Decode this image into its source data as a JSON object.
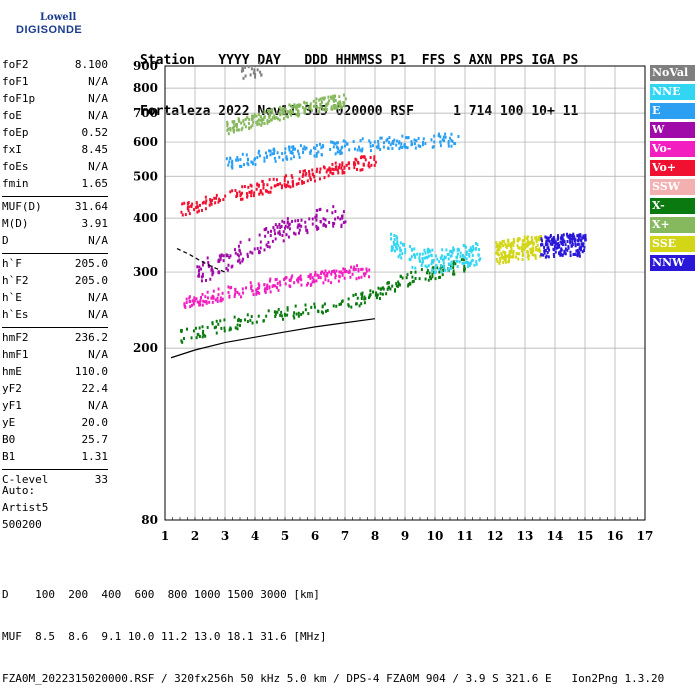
{
  "logo": {
    "line1": "Lowell",
    "line2": "DIGISONDE"
  },
  "header": {
    "row1": "Station   YYYY DAY   DDD HHMMSS P1  FFS S AXN PPS IGA PS",
    "row2": "Fortaleza 2022 Nov11 315 020000 RSF     1 714 100 10+ 11"
  },
  "params": {
    "group1": [
      {
        "k": "foF2",
        "v": "8.100"
      },
      {
        "k": "foF1",
        "v": "N/A"
      },
      {
        "k": "foF1p",
        "v": "N/A"
      },
      {
        "k": "foE",
        "v": "N/A"
      },
      {
        "k": "foEp",
        "v": "0.52"
      },
      {
        "k": "fxI",
        "v": "8.45"
      },
      {
        "k": "foEs",
        "v": "N/A"
      },
      {
        "k": "fmin",
        "v": "1.65"
      }
    ],
    "group2": [
      {
        "k": "MUF(D)",
        "v": "31.64"
      },
      {
        "k": "M(D)",
        "v": "3.91"
      },
      {
        "k": "D",
        "v": "N/A"
      }
    ],
    "group3": [
      {
        "k": "h`F",
        "v": "205.0"
      },
      {
        "k": "h`F2",
        "v": "205.0"
      },
      {
        "k": "h`E",
        "v": "N/A"
      },
      {
        "k": "h`Es",
        "v": "N/A"
      }
    ],
    "group4": [
      {
        "k": "hmF2",
        "v": "236.2"
      },
      {
        "k": "hmF1",
        "v": "N/A"
      },
      {
        "k": "hmE",
        "v": "110.0"
      },
      {
        "k": "yF2",
        "v": "22.4"
      },
      {
        "k": "yF1",
        "v": "N/A"
      },
      {
        "k": "yE",
        "v": "20.0"
      },
      {
        "k": "B0",
        "v": "25.7"
      },
      {
        "k": "B1",
        "v": "1.31"
      }
    ],
    "group5": [
      {
        "k": "C-level",
        "v": "33"
      }
    ]
  },
  "auto": {
    "line1": "Auto:",
    "line2": "Artist5",
    "line3": "500200"
  },
  "legend": [
    {
      "label": "NoVal",
      "color": "#7f7f7f"
    },
    {
      "label": "NNE",
      "color": "#33d6f2"
    },
    {
      "label": "E",
      "color": "#2ba0f2"
    },
    {
      "label": "W",
      "color": "#a00aa8"
    },
    {
      "label": "Vo-",
      "color": "#f21ec0"
    },
    {
      "label": "Vo+",
      "color": "#f01030"
    },
    {
      "label": "SSW",
      "color": "#f3b0b0"
    },
    {
      "label": "X-",
      "color": "#0a7a10"
    },
    {
      "label": "X+",
      "color": "#86b85e"
    },
    {
      "label": "SSE",
      "color": "#d2d616"
    },
    {
      "label": "NNW",
      "color": "#2a18d8"
    }
  ],
  "footer": {
    "row1": "D    100  200  400  600  800 1000 1500 3000 [km]",
    "row2": "MUF  8.5  8.6  9.1 10.0 11.2 13.0 18.1 31.6 [MHz]",
    "row3": "FZA0M_2022315020000.RSF / 320fx256h 50 kHz 5.0 km / DPS-4 FZA0M 904 / 3.9 S 321.6 E   Ion2Png 1.3.20"
  },
  "chart_data": {
    "type": "scatter",
    "title": "",
    "xlabel": "",
    "ylabel": "",
    "xlim": [
      1,
      17
    ],
    "ylim": [
      80,
      900
    ],
    "y_scale": "log",
    "x_ticks": [
      1,
      2,
      3,
      4,
      5,
      6,
      7,
      8,
      9,
      10,
      11,
      12,
      13,
      14,
      15,
      16,
      17
    ],
    "y_ticks": [
      80,
      200,
      300,
      400,
      500,
      600,
      700,
      800,
      900
    ],
    "grid": true,
    "legend_position": "right",
    "series": [
      {
        "name": "X-",
        "color": "#0a7a10",
        "style": "trace",
        "x": [
          1.5,
          2,
          3,
          4,
          5,
          6,
          7,
          8,
          8.5,
          9,
          9.5,
          10,
          10.5,
          11
        ],
        "y": [
          215,
          220,
          228,
          236,
          243,
          250,
          256,
          268,
          280,
          290,
          296,
          302,
          308,
          314
        ]
      },
      {
        "name": "Vo-",
        "color": "#f21ec0",
        "style": "trace",
        "x": [
          1.6,
          2.2,
          3,
          4,
          5,
          6,
          7,
          7.8
        ],
        "y": [
          255,
          262,
          270,
          278,
          286,
          292,
          300,
          305
        ]
      },
      {
        "name": "NNE",
        "color": "#33d6f2",
        "style": "cloud",
        "x": [
          8.5,
          9,
          10,
          11,
          11.5
        ],
        "y": [
          360,
          330,
          320,
          330,
          335
        ]
      },
      {
        "name": "SSE",
        "color": "#d2d616",
        "style": "cloud",
        "x": [
          12,
          12.5,
          13,
          13.5
        ],
        "y": [
          335,
          340,
          345,
          345
        ]
      },
      {
        "name": "NNW",
        "color": "#2a18d8",
        "style": "cloud",
        "x": [
          13.5,
          14,
          14.5,
          15
        ],
        "y": [
          345,
          350,
          350,
          350
        ]
      },
      {
        "name": "W",
        "color": "#a00aa8",
        "style": "cloud",
        "x": [
          2,
          3,
          4,
          5,
          6,
          7
        ],
        "y": [
          300,
          320,
          350,
          380,
          400,
          410
        ]
      },
      {
        "name": "Vo+",
        "color": "#f01030",
        "style": "trace",
        "x": [
          1.5,
          2,
          3,
          4,
          5,
          6,
          7,
          8
        ],
        "y": [
          422,
          430,
          450,
          470,
          490,
          510,
          530,
          550
        ]
      },
      {
        "name": "E",
        "color": "#2ba0f2",
        "style": "trace",
        "x": [
          3,
          4,
          5,
          6,
          7,
          8,
          9,
          10,
          10.8
        ],
        "y": [
          540,
          555,
          570,
          580,
          590,
          600,
          605,
          610,
          612
        ]
      },
      {
        "name": "X+",
        "color": "#86b85e",
        "style": "trace",
        "x": [
          3,
          3.5,
          4,
          4.5,
          5,
          5.5,
          6,
          6.5,
          7
        ],
        "y": [
          650,
          665,
          680,
          695,
          710,
          722,
          735,
          745,
          755
        ]
      },
      {
        "name": "NoVal",
        "color": "#7f7f7f",
        "style": "sparse",
        "x": [
          3.5,
          4,
          4.2
        ],
        "y": [
          870,
          885,
          895
        ]
      },
      {
        "name": "Model",
        "color": "#000000",
        "style": "line",
        "x": [
          1.2,
          2,
          3,
          4,
          5,
          6,
          7,
          8
        ],
        "y": [
          190,
          198,
          206,
          212,
          218,
          224,
          229,
          234
        ]
      },
      {
        "name": "Profile",
        "color": "#000000",
        "style": "dash",
        "x": [
          1.4,
          1.8,
          2.2,
          2.6,
          3
        ],
        "y": [
          340,
          330,
          318,
          308,
          300
        ]
      }
    ]
  }
}
